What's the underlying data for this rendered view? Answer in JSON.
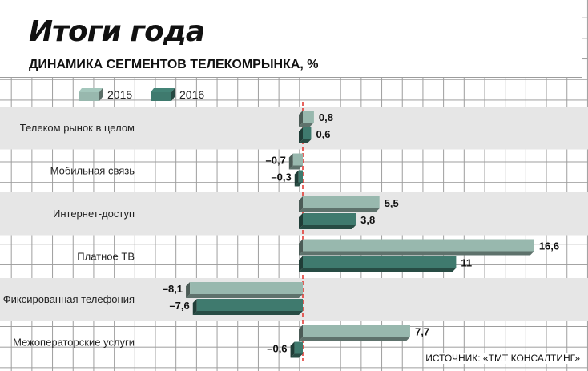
{
  "title": "Итоги года",
  "subtitle": "ДИНАМИКА СЕГМЕНТОВ ТЕЛЕКОМРЫНКА, %",
  "source": "ИСТОЧНИК: «ТМТ КОНСАЛТИНГ»",
  "colors": {
    "series_2015": "#98b8ae",
    "series_2016": "#3f7a6e",
    "zero_line": "#e0302a",
    "row_band": "#e6e6e6",
    "grid": "#9d9d9d"
  },
  "chart_data": {
    "type": "bar",
    "orientation": "horizontal",
    "title": "Итоги года",
    "subtitle": "ДИНАМИКА СЕГМЕНТОВ ТЕЛЕКОМРЫНКА, %",
    "categories": [
      "Телеком рынок в целом",
      "Мобильная связь",
      "Интернет-доступ",
      "Платное ТВ",
      "Фиксированная телефония",
      "Межоператорские услуги"
    ],
    "series": [
      {
        "name": "2015",
        "values": [
          0.8,
          -0.7,
          5.5,
          16.6,
          -8.1,
          7.7
        ],
        "labels": [
          "0,8",
          "–0,7",
          "5,5",
          "16,6",
          "–8,1",
          "7,7"
        ]
      },
      {
        "name": "2016",
        "values": [
          0.6,
          -0.3,
          3.8,
          11,
          -7.6,
          -0.6
        ],
        "labels": [
          "0,6",
          "–0,3",
          "3,8",
          "11",
          "–7,6",
          "–0,6"
        ]
      }
    ],
    "xlim": [
      -8.1,
      16.6
    ],
    "legend": "top-left",
    "grid": true
  }
}
